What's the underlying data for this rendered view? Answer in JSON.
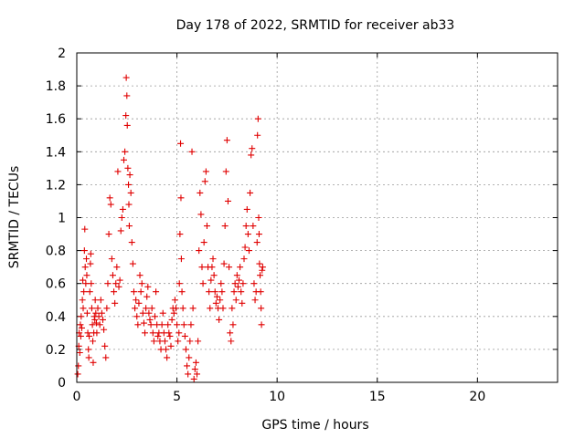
{
  "chart_data": {
    "type": "scatter",
    "title": "Day 178 of 2022, SRMTID for receiver ab33",
    "xlabel": "GPS time / hours",
    "ylabel": "SRMTID / TECUs",
    "xlim": [
      0,
      24
    ],
    "ylim": [
      0,
      2
    ],
    "xticks": [
      0,
      5,
      10,
      15,
      20
    ],
    "xtick_labels": [
      "0",
      "5",
      "10",
      "15",
      "20"
    ],
    "yticks": [
      0,
      0.2,
      0.4,
      0.6,
      0.8,
      1,
      1.2,
      1.4,
      1.6,
      1.8,
      2
    ],
    "ytick_labels": [
      "0",
      "0.2",
      "0.4",
      "0.6",
      "0.8",
      "1",
      "1.2",
      "1.4",
      "1.6",
      "1.8",
      "2"
    ],
    "grid": true,
    "marker": "+",
    "marker_color": "#e00000",
    "series": [
      {
        "name": "SRMTID",
        "points": [
          [
            0.05,
            0.05
          ],
          [
            0.08,
            0.1
          ],
          [
            0.1,
            0.22
          ],
          [
            0.12,
            0.3
          ],
          [
            0.15,
            0.18
          ],
          [
            0.18,
            0.35
          ],
          [
            0.2,
            0.28
          ],
          [
            0.22,
            0.4
          ],
          [
            0.25,
            0.33
          ],
          [
            0.28,
            0.5
          ],
          [
            0.3,
            0.62
          ],
          [
            0.32,
            0.45
          ],
          [
            0.35,
            0.55
          ],
          [
            0.38,
            0.8
          ],
          [
            0.4,
            0.93
          ],
          [
            0.42,
            0.7
          ],
          [
            0.45,
            0.6
          ],
          [
            0.48,
            0.75
          ],
          [
            0.5,
            0.65
          ],
          [
            0.52,
            0.42
          ],
          [
            0.55,
            0.3
          ],
          [
            0.58,
            0.2
          ],
          [
            0.6,
            0.15
          ],
          [
            0.62,
            0.28
          ],
          [
            0.65,
            0.55
          ],
          [
            0.68,
            0.72
          ],
          [
            0.7,
            0.78
          ],
          [
            0.72,
            0.6
          ],
          [
            0.75,
            0.45
          ],
          [
            0.78,
            0.35
          ],
          [
            0.8,
            0.25
          ],
          [
            0.82,
            0.12
          ],
          [
            0.85,
            0.3
          ],
          [
            0.88,
            0.4
          ],
          [
            0.9,
            0.38
          ],
          [
            0.92,
            0.5
          ],
          [
            0.95,
            0.42
          ],
          [
            0.98,
            0.36
          ],
          [
            1.0,
            0.3
          ],
          [
            1.05,
            0.45
          ],
          [
            1.1,
            0.4
          ],
          [
            1.15,
            0.35
          ],
          [
            1.2,
            0.5
          ],
          [
            1.25,
            0.42
          ],
          [
            1.3,
            0.38
          ],
          [
            1.35,
            0.32
          ],
          [
            1.4,
            0.22
          ],
          [
            1.45,
            0.15
          ],
          [
            1.5,
            0.45
          ],
          [
            1.55,
            0.6
          ],
          [
            1.6,
            0.9
          ],
          [
            1.65,
            1.12
          ],
          [
            1.7,
            1.08
          ],
          [
            1.75,
            0.75
          ],
          [
            1.8,
            0.65
          ],
          [
            1.85,
            0.55
          ],
          [
            1.9,
            0.48
          ],
          [
            1.95,
            0.6
          ],
          [
            2.0,
            0.7
          ],
          [
            2.05,
            1.28
          ],
          [
            2.1,
            0.58
          ],
          [
            2.15,
            0.62
          ],
          [
            2.2,
            0.92
          ],
          [
            2.25,
            1.0
          ],
          [
            2.3,
            1.05
          ],
          [
            2.35,
            1.35
          ],
          [
            2.4,
            1.4
          ],
          [
            2.45,
            1.62
          ],
          [
            2.47,
            1.85
          ],
          [
            2.5,
            1.74
          ],
          [
            2.52,
            1.56
          ],
          [
            2.55,
            1.3
          ],
          [
            2.58,
            1.2
          ],
          [
            2.6,
            1.08
          ],
          [
            2.62,
            0.95
          ],
          [
            2.65,
            1.26
          ],
          [
            2.7,
            1.15
          ],
          [
            2.75,
            0.85
          ],
          [
            2.8,
            0.72
          ],
          [
            2.85,
            0.55
          ],
          [
            2.9,
            0.45
          ],
          [
            2.95,
            0.5
          ],
          [
            3.0,
            0.4
          ],
          [
            3.05,
            0.35
          ],
          [
            3.1,
            0.48
          ],
          [
            3.15,
            0.65
          ],
          [
            3.2,
            0.55
          ],
          [
            3.25,
            0.6
          ],
          [
            3.3,
            0.42
          ],
          [
            3.35,
            0.36
          ],
          [
            3.4,
            0.3
          ],
          [
            3.45,
            0.45
          ],
          [
            3.5,
            0.52
          ],
          [
            3.55,
            0.58
          ],
          [
            3.6,
            0.42
          ],
          [
            3.65,
            0.38
          ],
          [
            3.7,
            0.35
          ],
          [
            3.75,
            0.45
          ],
          [
            3.8,
            0.3
          ],
          [
            3.85,
            0.25
          ],
          [
            3.9,
            0.4
          ],
          [
            3.95,
            0.55
          ],
          [
            4.0,
            0.35
          ],
          [
            4.05,
            0.28
          ],
          [
            4.1,
            0.3
          ],
          [
            4.15,
            0.25
          ],
          [
            4.2,
            0.2
          ],
          [
            4.25,
            0.35
          ],
          [
            4.3,
            0.42
          ],
          [
            4.35,
            0.3
          ],
          [
            4.4,
            0.25
          ],
          [
            4.45,
            0.2
          ],
          [
            4.5,
            0.15
          ],
          [
            4.55,
            0.35
          ],
          [
            4.6,
            0.3
          ],
          [
            4.65,
            0.28
          ],
          [
            4.7,
            0.22
          ],
          [
            4.75,
            0.38
          ],
          [
            4.8,
            0.45
          ],
          [
            4.85,
            0.42
          ],
          [
            4.9,
            0.5
          ],
          [
            4.95,
            0.45
          ],
          [
            5.0,
            0.35
          ],
          [
            5.05,
            0.25
          ],
          [
            5.1,
            0.3
          ],
          [
            5.12,
            0.6
          ],
          [
            5.15,
            0.9
          ],
          [
            5.18,
            1.45
          ],
          [
            5.2,
            1.12
          ],
          [
            5.22,
            0.75
          ],
          [
            5.25,
            0.55
          ],
          [
            5.3,
            0.45
          ],
          [
            5.35,
            0.35
          ],
          [
            5.4,
            0.28
          ],
          [
            5.45,
            0.2
          ],
          [
            5.5,
            0.1
          ],
          [
            5.55,
            0.05
          ],
          [
            5.6,
            0.15
          ],
          [
            5.65,
            0.25
          ],
          [
            5.7,
            0.35
          ],
          [
            5.75,
            1.4
          ],
          [
            5.8,
            0.45
          ],
          [
            5.85,
            0.02
          ],
          [
            5.9,
            0.08
          ],
          [
            5.95,
            0.12
          ],
          [
            6.0,
            0.05
          ],
          [
            6.05,
            0.25
          ],
          [
            6.1,
            0.8
          ],
          [
            6.15,
            1.15
          ],
          [
            6.2,
            1.02
          ],
          [
            6.25,
            0.7
          ],
          [
            6.3,
            0.6
          ],
          [
            6.35,
            0.85
          ],
          [
            6.4,
            1.22
          ],
          [
            6.45,
            1.28
          ],
          [
            6.5,
            0.95
          ],
          [
            6.55,
            0.7
          ],
          [
            6.6,
            0.55
          ],
          [
            6.65,
            0.45
          ],
          [
            6.7,
            0.62
          ],
          [
            6.75,
            0.7
          ],
          [
            6.8,
            0.75
          ],
          [
            6.85,
            0.65
          ],
          [
            6.9,
            0.55
          ],
          [
            6.95,
            0.48
          ],
          [
            7.0,
            0.52
          ],
          [
            7.05,
            0.45
          ],
          [
            7.1,
            0.38
          ],
          [
            7.15,
            0.5
          ],
          [
            7.2,
            0.6
          ],
          [
            7.25,
            0.55
          ],
          [
            7.3,
            0.45
          ],
          [
            7.35,
            0.72
          ],
          [
            7.4,
            0.95
          ],
          [
            7.45,
            1.28
          ],
          [
            7.5,
            1.47
          ],
          [
            7.55,
            1.1
          ],
          [
            7.6,
            0.7
          ],
          [
            7.65,
            0.3
          ],
          [
            7.7,
            0.25
          ],
          [
            7.75,
            0.45
          ],
          [
            7.8,
            0.35
          ],
          [
            7.85,
            0.55
          ],
          [
            7.9,
            0.6
          ],
          [
            7.95,
            0.5
          ],
          [
            8.0,
            0.65
          ],
          [
            8.05,
            0.58
          ],
          [
            8.1,
            0.62
          ],
          [
            8.15,
            0.7
          ],
          [
            8.2,
            0.55
          ],
          [
            8.25,
            0.48
          ],
          [
            8.3,
            0.6
          ],
          [
            8.35,
            0.75
          ],
          [
            8.4,
            0.82
          ],
          [
            8.45,
            0.95
          ],
          [
            8.5,
            1.05
          ],
          [
            8.55,
            0.9
          ],
          [
            8.6,
            0.8
          ],
          [
            8.65,
            1.15
          ],
          [
            8.7,
            1.38
          ],
          [
            8.75,
            1.42
          ],
          [
            8.8,
            0.95
          ],
          [
            8.85,
            0.6
          ],
          [
            8.9,
            0.5
          ],
          [
            8.95,
            0.55
          ],
          [
            9.0,
            0.85
          ],
          [
            9.02,
            1.5
          ],
          [
            9.05,
            1.6
          ],
          [
            9.08,
            1.0
          ],
          [
            9.1,
            0.9
          ],
          [
            9.12,
            0.72
          ],
          [
            9.15,
            0.65
          ],
          [
            9.18,
            0.55
          ],
          [
            9.2,
            0.45
          ],
          [
            9.22,
            0.35
          ],
          [
            9.25,
            0.68
          ],
          [
            9.28,
            0.7
          ]
        ]
      }
    ]
  }
}
